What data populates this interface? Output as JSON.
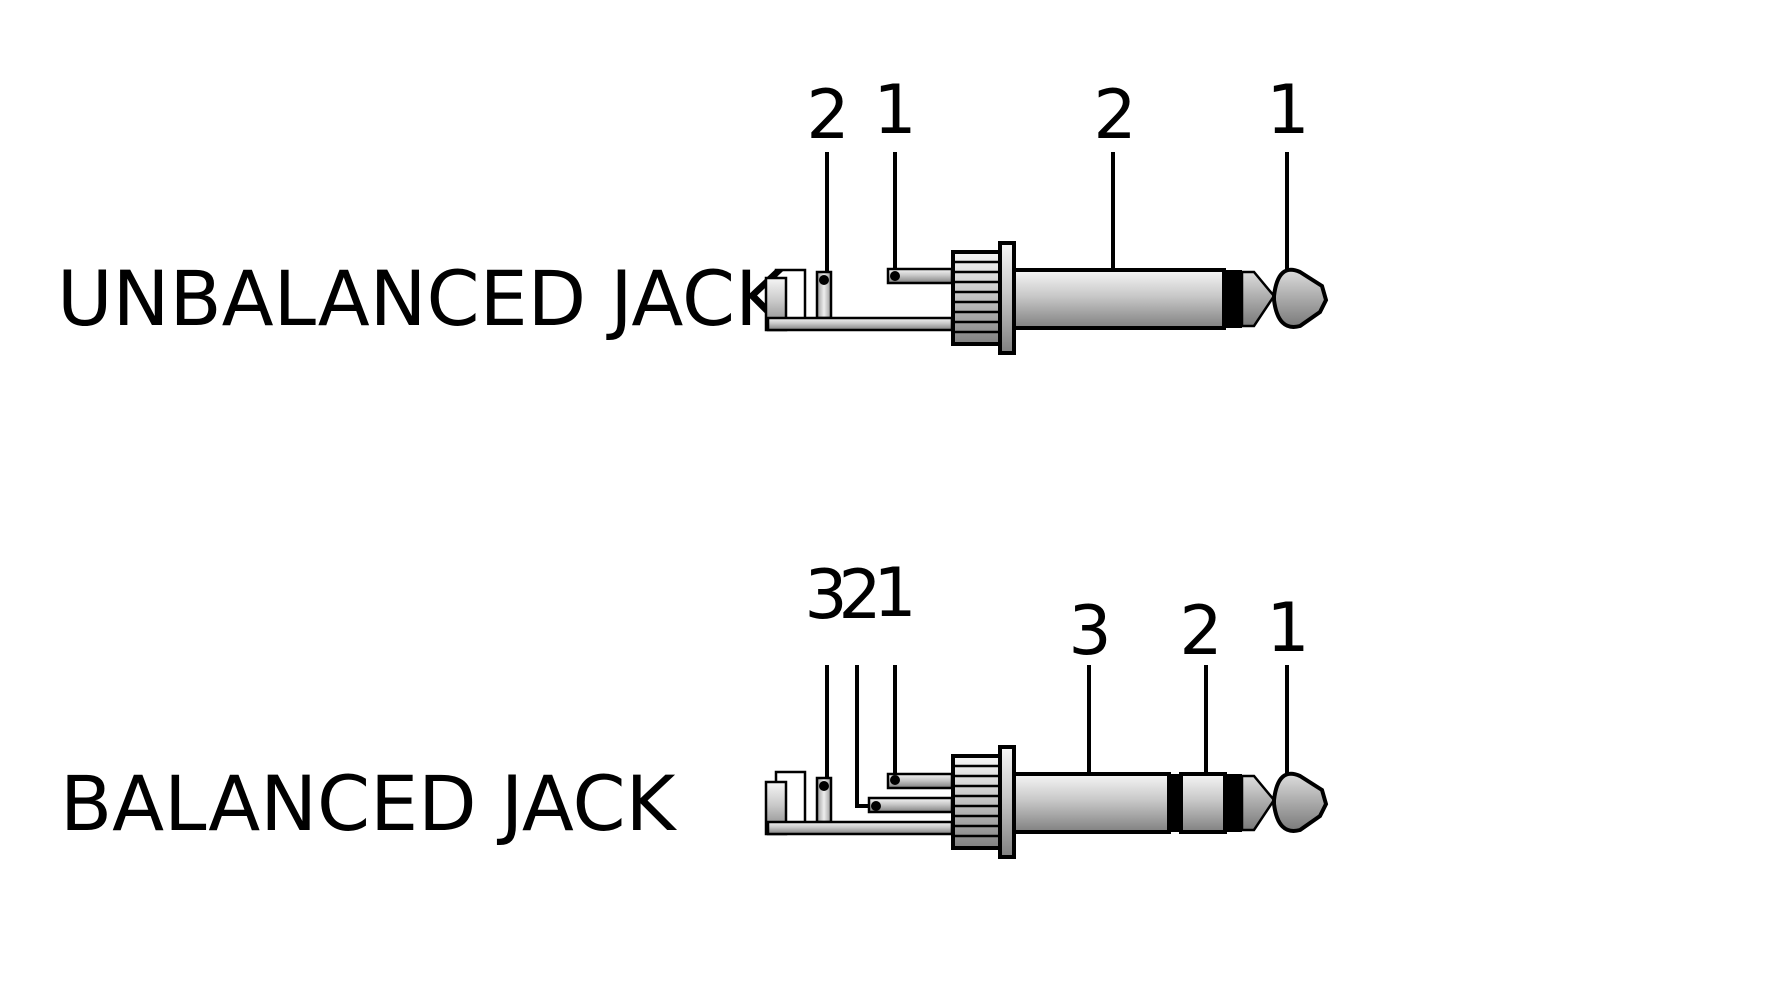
{
  "diagram": {
    "unbalanced": {
      "title": "UNBALANCED JACK",
      "labels": {
        "sleeve_lug": "2",
        "tip_lug": "1",
        "sleeve": "2",
        "tip": "1"
      }
    },
    "balanced": {
      "title": "BALANCED JACK",
      "labels": {
        "sleeve_lug": "3",
        "ring_lug": "2",
        "tip_lug": "1",
        "sleeve": "3",
        "ring": "2",
        "tip": "1"
      }
    },
    "colors": {
      "line": "#000000",
      "metal_light": "#f4f4f4",
      "metal_mid": "#bdbdbd",
      "metal_dark": "#7a7a7a",
      "insulator": "#000000"
    }
  }
}
